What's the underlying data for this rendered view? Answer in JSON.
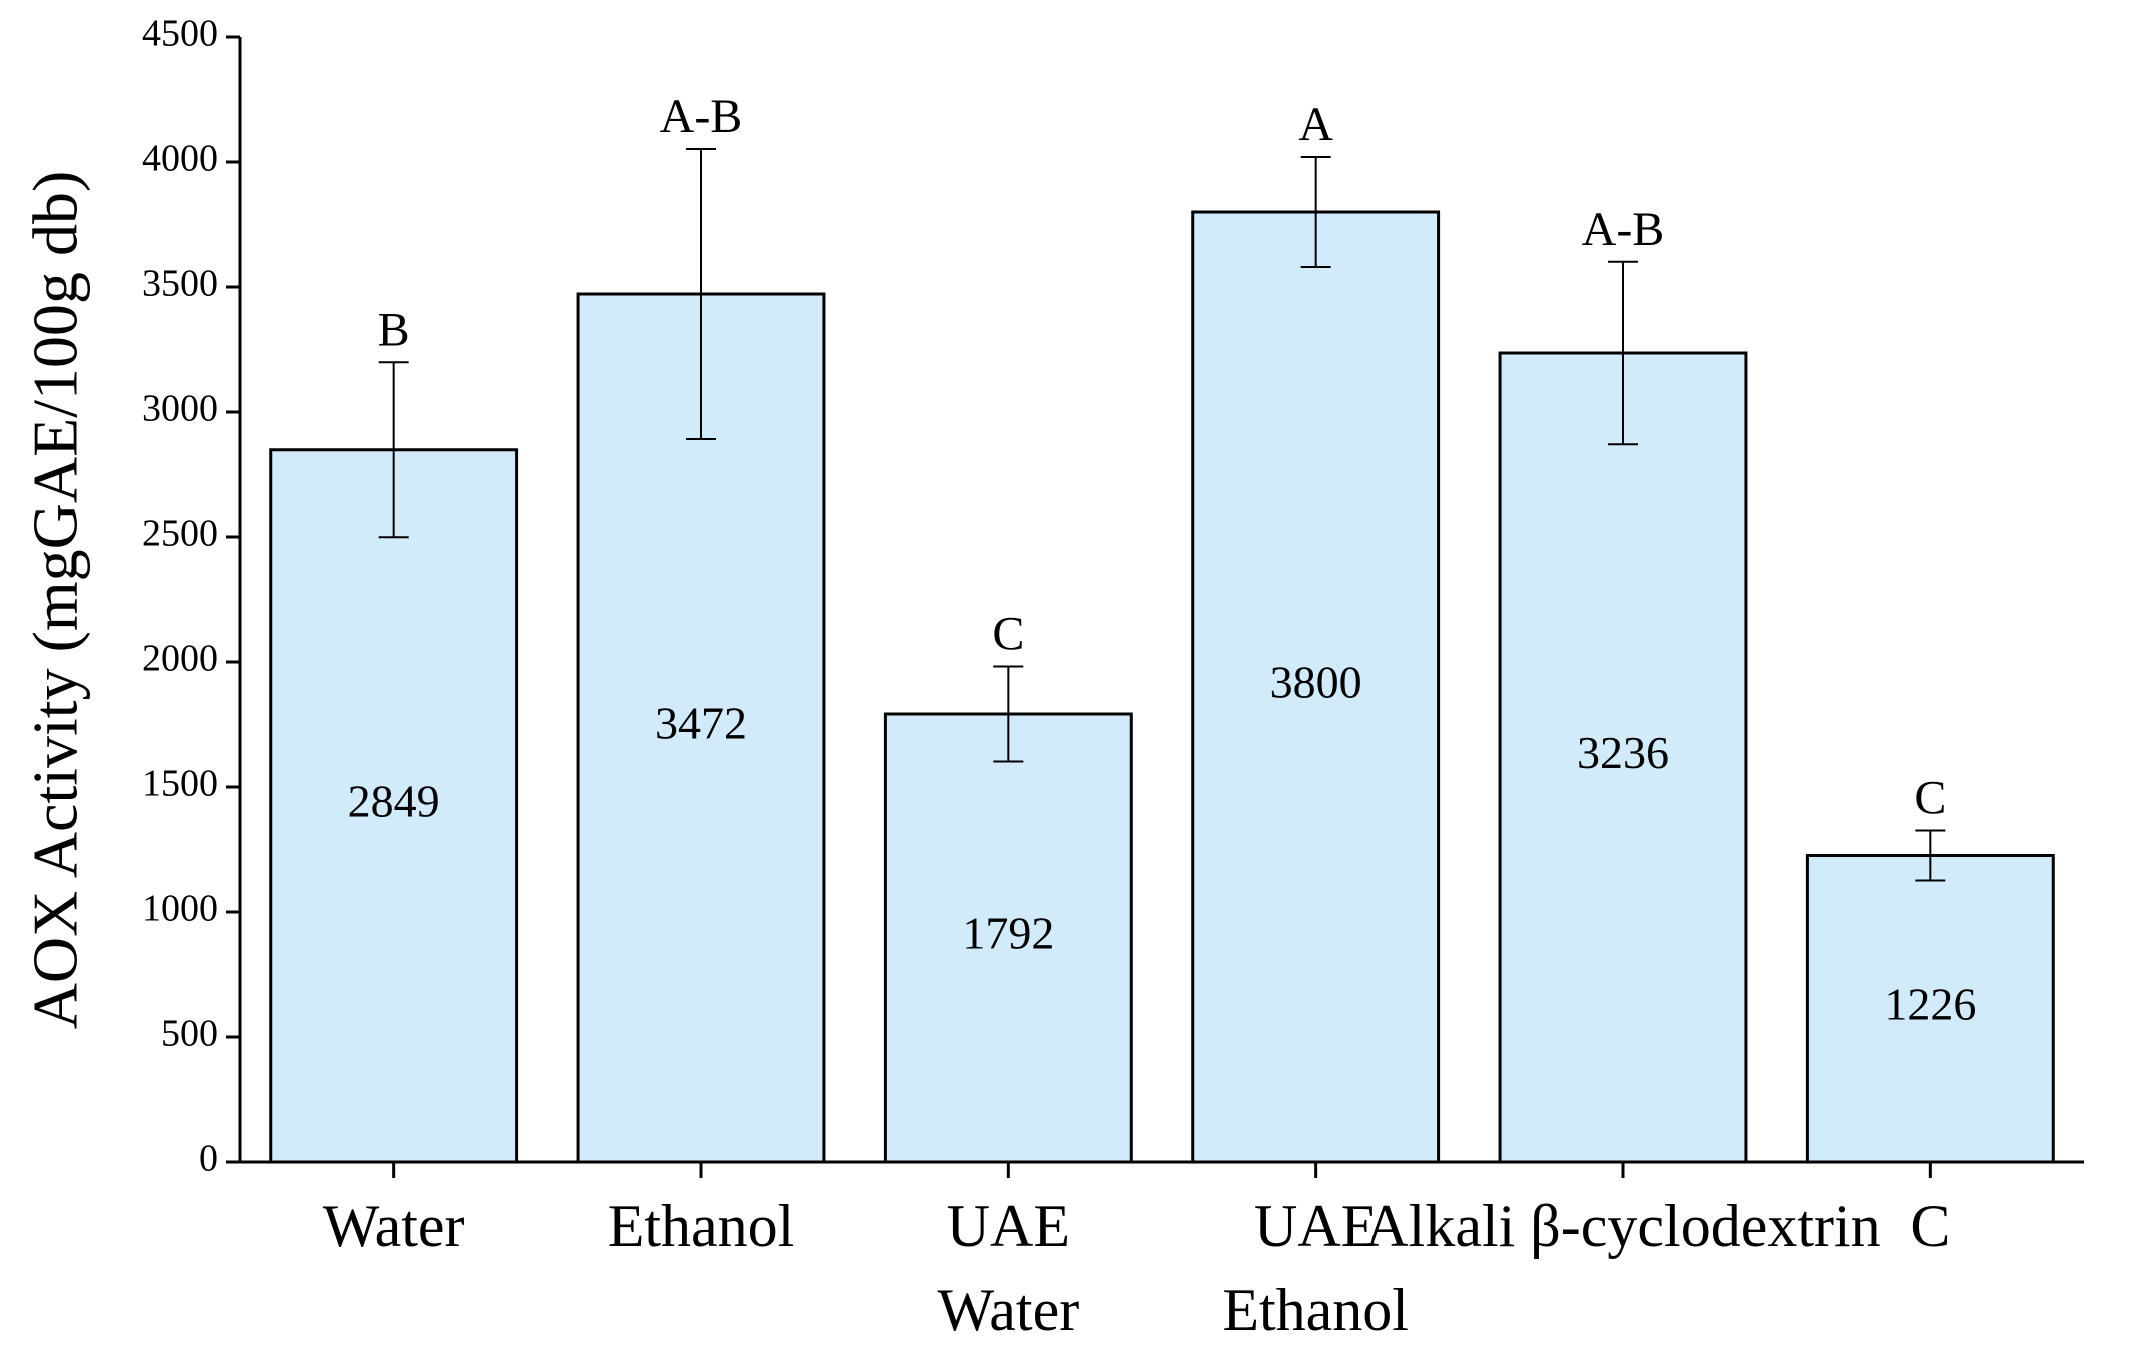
{
  "chart_data": {
    "type": "bar",
    "y_label": "AOX Activity (mgGAE/100g db)",
    "categories": [
      "Water",
      "Ethanol",
      "UAE\nWater",
      "UAE\nEthanol",
      "Alkali β-cyclodextrin",
      "C"
    ],
    "values": [
      2849,
      3472,
      1792,
      3800,
      3236,
      1226
    ],
    "errors": [
      350,
      580,
      190,
      220,
      365,
      100
    ],
    "letters": [
      "B",
      "A-B",
      "C",
      "A",
      "A-B",
      "C"
    ],
    "color": "#d1ebfb",
    "ylim": [
      0,
      4500
    ],
    "yticks": [
      0,
      500,
      1000,
      1500,
      2000,
      2500,
      3000,
      3500,
      4000,
      4500
    ]
  }
}
